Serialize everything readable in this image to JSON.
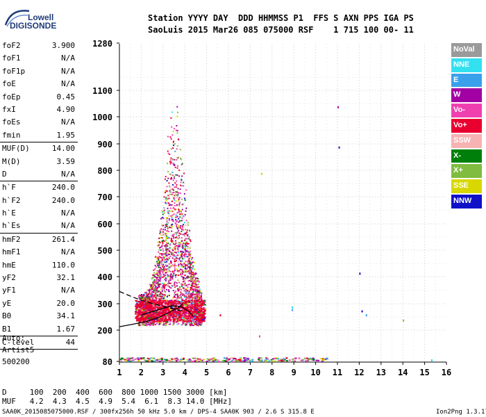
{
  "logo": {
    "line1": "Lowell",
    "line2": "DIGISONDE"
  },
  "header": {
    "line1": "Station YYYY DAY  DDD HHMMSS P1  FFS S AXN PPS IGA PS",
    "line2": "SaoLuis 2015 Mar26 085 075000 RSF    1 715 100 00- 11"
  },
  "params": [
    {
      "k": "foF2",
      "v": "3.900"
    },
    {
      "k": "foF1",
      "v": "N/A"
    },
    {
      "k": "foF1p",
      "v": "N/A"
    },
    {
      "k": "foE",
      "v": "N/A"
    },
    {
      "k": "foEp",
      "v": "0.45"
    },
    {
      "k": "fxI",
      "v": "4.90"
    },
    {
      "k": "foEs",
      "v": "N/A"
    },
    {
      "k": "fmin",
      "v": "1.95"
    },
    {
      "k": "MUF(D)",
      "v": "14.00",
      "sep": true
    },
    {
      "k": "M(D)",
      "v": "3.59"
    },
    {
      "k": "D",
      "v": "N/A"
    },
    {
      "k": "h`F",
      "v": "240.0",
      "sep": true
    },
    {
      "k": "h`F2",
      "v": "240.0"
    },
    {
      "k": "h`E",
      "v": "N/A"
    },
    {
      "k": "h`Es",
      "v": "N/A"
    },
    {
      "k": "hmF2",
      "v": "261.4",
      "sep": true
    },
    {
      "k": "hmF1",
      "v": "N/A"
    },
    {
      "k": "hmE",
      "v": "110.0"
    },
    {
      "k": "yF2",
      "v": "32.1"
    },
    {
      "k": "yF1",
      "v": "N/A"
    },
    {
      "k": "yE",
      "v": "20.0"
    },
    {
      "k": "B0",
      "v": "34.1"
    },
    {
      "k": "B1",
      "v": "1.67"
    },
    {
      "k": "C-level",
      "v": "44",
      "sep": true
    }
  ],
  "auto": {
    "l1": "Auto:",
    "l2": "Artist5",
    "l3": "500200"
  },
  "legend": [
    {
      "label": "NoVal",
      "color": "#9a9a9a"
    },
    {
      "label": "NNE",
      "color": "#33e0f0"
    },
    {
      "label": "E",
      "color": "#3aa0ec"
    },
    {
      "label": "W",
      "color": "#a300a3"
    },
    {
      "label": "Vo-",
      "color": "#f040b0"
    },
    {
      "label": "Vo+",
      "color": "#ea0030"
    },
    {
      "label": "SSW",
      "color": "#f7b2b2"
    },
    {
      "label": "X-",
      "color": "#00800a"
    },
    {
      "label": "X+",
      "color": "#80bc40"
    },
    {
      "label": "SSE",
      "color": "#d8d800"
    },
    {
      "label": "NNW",
      "color": "#1010c8"
    }
  ],
  "bottom": {
    "d_row": "D     100  200  400  600  800 1000 1500 3000 [km]",
    "muf_row": "MUF   4.2  4.3  4.5  4.9  5.4  6.1  8.3 14.0 [MHz]"
  },
  "footer": {
    "left": "SAA0K_2015085075000.RSF / 300fx256h 50 kHz 5.0 km / DPS-4 SAA0K 903 / 2.6 S 315.8 E",
    "right": "Ion2Png 1.3.17"
  },
  "chart_data": {
    "type": "scatter",
    "x_ticks": [
      1,
      2,
      3,
      4,
      5,
      6,
      7,
      8,
      9,
      10,
      11,
      12,
      13,
      14,
      15,
      16
    ],
    "y_ticks": [
      80,
      200,
      300,
      400,
      500,
      600,
      700,
      800,
      900,
      1000,
      1100,
      1280
    ],
    "xlim": [
      1,
      16
    ],
    "ylim": [
      80,
      1280
    ],
    "grid": true,
    "traces": [
      {
        "name": "O-trace",
        "color": "#000000",
        "x": [
          1.0,
          1.6,
          2.2,
          2.8,
          3.1,
          3.4,
          3.7,
          3.9
        ],
        "y": [
          213,
          222,
          232,
          248,
          260,
          272,
          285,
          300
        ]
      },
      {
        "name": "X-trace",
        "color": "#000000",
        "x": [
          2.0,
          2.5,
          3.0,
          3.4,
          3.8,
          4.2,
          4.4
        ],
        "y": [
          258,
          270,
          282,
          292,
          290,
          270,
          250
        ]
      },
      {
        "name": "model",
        "color": "#000000",
        "dashed": true,
        "x": [
          1.0,
          1.6,
          2.3,
          3.0,
          3.5,
          3.9
        ],
        "y": [
          345,
          325,
          305,
          290,
          280,
          272
        ]
      }
    ]
  }
}
